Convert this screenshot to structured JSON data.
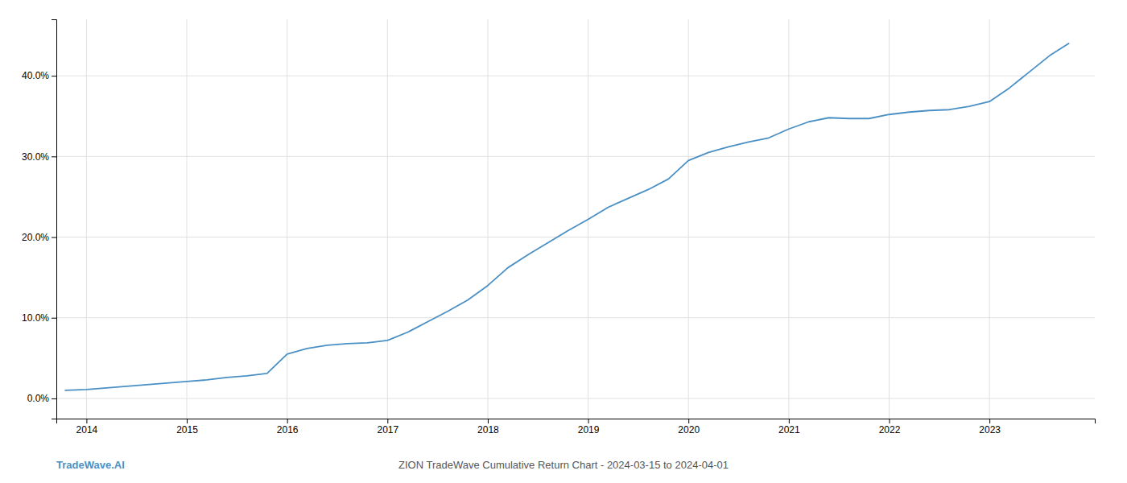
{
  "chart_data": {
    "type": "line",
    "title": "ZION TradeWave Cumulative Return Chart - 2024-03-15 to 2024-04-01",
    "annotations": [
      "TradeWave.AI"
    ],
    "color": "#4a90c4",
    "x": [
      2013.79,
      2014.0,
      2014.1,
      2014.2,
      2014.4,
      2014.6,
      2014.8,
      2015.0,
      2015.2,
      2015.4,
      2015.6,
      2015.8,
      2016.0,
      2016.2,
      2016.4,
      2016.6,
      2016.8,
      2017.0,
      2017.2,
      2017.4,
      2017.6,
      2017.8,
      2018.0,
      2018.2,
      2018.4,
      2018.6,
      2018.8,
      2019.0,
      2019.2,
      2019.4,
      2019.6,
      2019.8,
      2020.0,
      2020.2,
      2020.4,
      2020.6,
      2020.8,
      2021.0,
      2021.2,
      2021.4,
      2021.6,
      2021.8,
      2022.0,
      2022.2,
      2022.4,
      2022.6,
      2022.8,
      2023.0,
      2023.2,
      2023.4,
      2023.6,
      2023.79
    ],
    "values": [
      0.01,
      0.011,
      0.012,
      0.013,
      0.015,
      0.017,
      0.019,
      0.021,
      0.023,
      0.026,
      0.028,
      0.031,
      0.055,
      0.062,
      0.066,
      0.068,
      0.069,
      0.072,
      0.082,
      0.095,
      0.108,
      0.122,
      0.14,
      0.162,
      0.178,
      0.193,
      0.208,
      0.222,
      0.237,
      0.248,
      0.259,
      0.272,
      0.295,
      0.305,
      0.312,
      0.318,
      0.323,
      0.334,
      0.343,
      0.348,
      0.347,
      0.347,
      0.352,
      0.355,
      0.357,
      0.358,
      0.362,
      0.368,
      0.385,
      0.405,
      0.425,
      0.44
    ],
    "xlim": [
      2013.7,
      2024.05
    ],
    "xticks": [
      2014,
      2015,
      2016,
      2017,
      2018,
      2019,
      2020,
      2021,
      2022,
      2023
    ],
    "ylim": [
      -0.025,
      0.47
    ],
    "yticks": [
      {
        "value": 0.0,
        "label": "0.0%"
      },
      {
        "value": 0.1,
        "label": "10.0%"
      },
      {
        "value": 0.2,
        "label": "20.0%"
      },
      {
        "value": 0.3,
        "label": "30.0%"
      },
      {
        "value": 0.4,
        "label": "40.0%"
      }
    ],
    "grid": true
  }
}
